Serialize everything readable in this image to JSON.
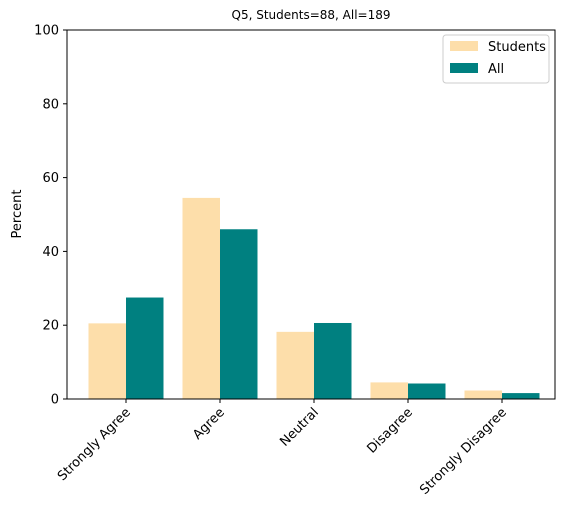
{
  "chart_data": {
    "type": "bar",
    "title": "Q5, Students=88, All=189",
    "xlabel": "",
    "ylabel": "Percent",
    "ylim": [
      0,
      100
    ],
    "yticks": [
      "0",
      "20",
      "40",
      "60",
      "80",
      "100"
    ],
    "categories": [
      "Strongly Agree",
      "Agree",
      "Neutral",
      "Disagree",
      "Strongly Disagree"
    ],
    "series": [
      {
        "name": "Students",
        "color": "#fddeaa",
        "values": [
          20.5,
          54.5,
          18.2,
          4.5,
          2.3
        ]
      },
      {
        "name": "All",
        "color": "#008080",
        "values": [
          27.5,
          46.0,
          20.6,
          4.2,
          1.6
        ]
      }
    ],
    "legend_position": "top-right",
    "grid": false
  }
}
